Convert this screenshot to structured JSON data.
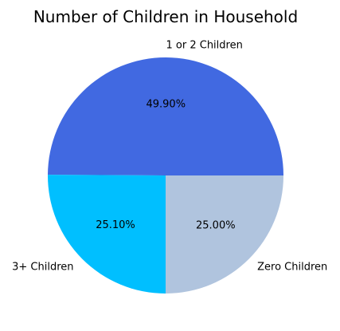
{
  "chart_data": {
    "type": "pie",
    "title": "Number of Children in Household",
    "start_angle_deg": 0,
    "direction": "counterclockwise",
    "slices": [
      {
        "label": "1 or 2 Children",
        "value": 49.9,
        "pct_label": "49.90%",
        "color": "#4169E1"
      },
      {
        "label": "3+ Children",
        "value": 25.1,
        "pct_label": "25.10%",
        "color": "#00BFFF"
      },
      {
        "label": "Zero Children",
        "value": 25.0,
        "pct_label": "25.00%",
        "color": "#B0C4DE"
      }
    ]
  }
}
